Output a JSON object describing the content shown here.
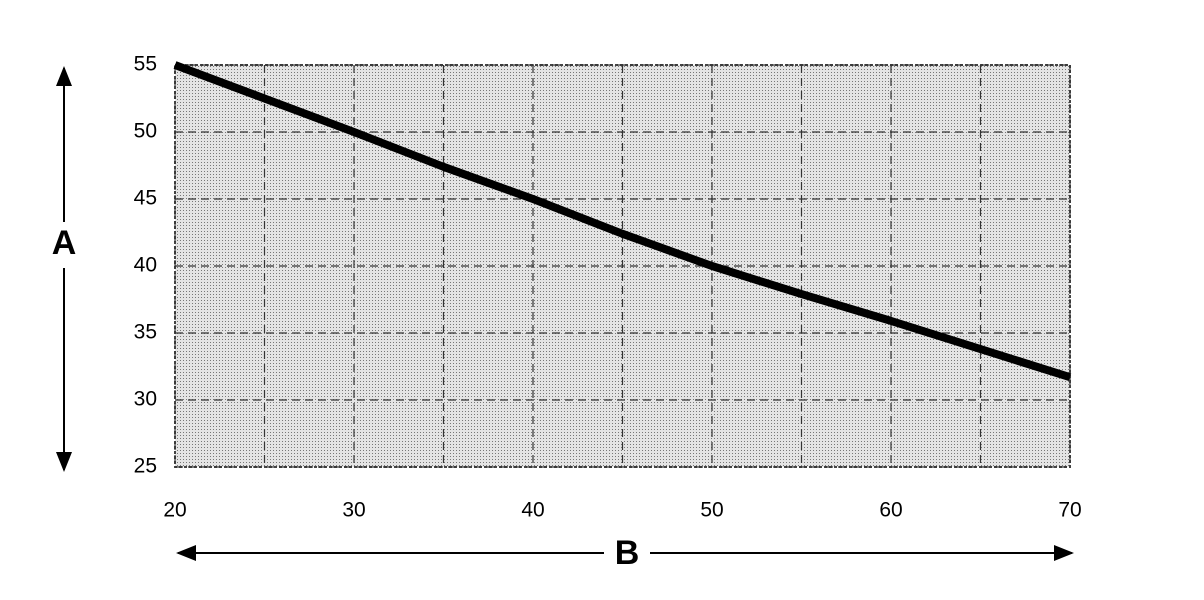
{
  "chart_data": {
    "type": "line",
    "xlabel": "B",
    "ylabel": "A",
    "x": [
      20,
      25,
      30,
      35,
      40,
      45,
      50,
      55,
      60,
      65,
      70
    ],
    "series": [
      {
        "color": "#000000",
        "values": [
          55,
          52.5,
          50,
          47.4,
          45,
          42.4,
          40,
          37.9,
          35.9,
          33.8,
          31.7
        ]
      }
    ],
    "xlim": [
      20,
      70
    ],
    "xticks": [
      20,
      30,
      40,
      50,
      60,
      70
    ],
    "x_minor_ticks": [
      25,
      35,
      45,
      55,
      65
    ],
    "ylim": [
      25,
      55
    ],
    "yticks": [
      25,
      30,
      35,
      40,
      45,
      50,
      55
    ],
    "grid": true
  }
}
